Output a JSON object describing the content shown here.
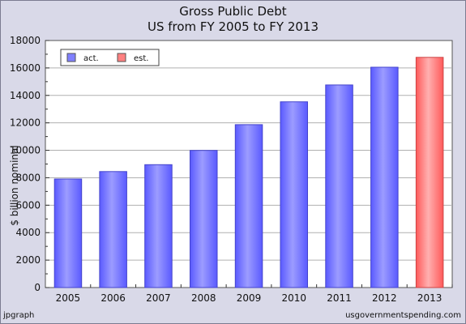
{
  "chart_data": {
    "type": "bar",
    "title": "Gross Public Debt",
    "subtitle": "US from FY 2005 to FY 2013",
    "ylabel": "$ billion nominal",
    "xlabel": "",
    "categories": [
      "2005",
      "2006",
      "2007",
      "2008",
      "2009",
      "2010",
      "2011",
      "2012",
      "2013"
    ],
    "values": [
      7910,
      8450,
      8950,
      9990,
      11870,
      13530,
      14760,
      16050,
      16770
    ],
    "kind": [
      "act.",
      "act.",
      "act.",
      "act.",
      "act.",
      "act.",
      "act.",
      "act.",
      "est."
    ],
    "ylim": [
      0,
      18000
    ],
    "yticks": [
      0,
      2000,
      4000,
      6000,
      8000,
      10000,
      12000,
      14000,
      16000,
      18000
    ],
    "grid": true,
    "legend": {
      "placement": "top-left",
      "entries": [
        {
          "label": "act.",
          "color": "#8080ff"
        },
        {
          "label": "est.",
          "color": "#ff8080"
        }
      ]
    }
  },
  "footer": {
    "left": "jpgraph",
    "right": "usgovernmentspending.com"
  },
  "colors": {
    "background": "#d9d9e8",
    "plot_background": "#ffffff",
    "actual": "#8080ff",
    "estimate": "#ff8080"
  }
}
